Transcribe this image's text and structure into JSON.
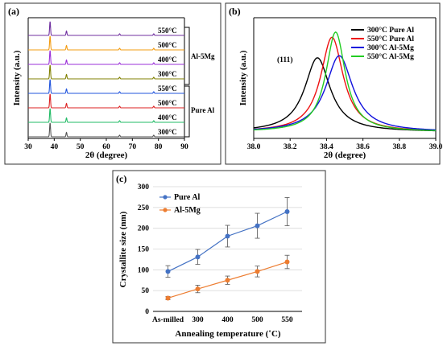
{
  "chart_data": [
    {
      "panel": "(a)",
      "type": "line",
      "xlabel": "2θ (degree)",
      "ylabel": "Intensity (a.u.)",
      "xlim": [
        30,
        90
      ],
      "xticks": [
        "30",
        "40",
        "50",
        "60",
        "70",
        "80",
        "90"
      ],
      "peaks_2theta": [
        38.4,
        44.7,
        65.1,
        78.2
      ],
      "peak_relative_heights": [
        1.0,
        0.32,
        0.12,
        0.12
      ],
      "series": [
        {
          "name": "550°C",
          "group": "Al-5Mg",
          "color": "#7030a0"
        },
        {
          "name": "500°C",
          "group": "Al-5Mg",
          "color": "#f39c12"
        },
        {
          "name": "400°C",
          "group": "Al-5Mg",
          "color": "#9b30d9"
        },
        {
          "name": "300°C",
          "group": "Al-5Mg",
          "color": "#808000"
        },
        {
          "name": "550°C",
          "group": "Pure Al",
          "color": "#2255dd"
        },
        {
          "name": "500°C",
          "group": "Pure Al",
          "color": "#dd2222"
        },
        {
          "name": "400°C",
          "group": "Pure Al",
          "color": "#22bb66"
        },
        {
          "name": "300°C",
          "group": "Pure Al",
          "color": "#555555"
        }
      ],
      "groups": [
        "Al-5Mg",
        "Pure Al"
      ]
    },
    {
      "panel": "(b)",
      "type": "line",
      "xlabel": "2θ (degree)",
      "ylabel": "Intensity (a.u.)",
      "xlim": [
        38.0,
        39.0
      ],
      "xticks": [
        "38.0",
        "38.2",
        "38.4",
        "38.6",
        "38.8",
        "39.0"
      ],
      "annotation": "(111)",
      "series": [
        {
          "name": "300°C Pure Al",
          "color": "#000000",
          "center": 38.35,
          "height": 0.72,
          "width": 0.085
        },
        {
          "name": "550°C Pure Al",
          "color": "#ee1111",
          "center": 38.43,
          "height": 0.92,
          "width": 0.075
        },
        {
          "name": "300°C Al-5Mg",
          "color": "#1111dd",
          "center": 38.47,
          "height": 0.74,
          "width": 0.09
        },
        {
          "name": "550°C Al-5Mg",
          "color": "#22cc22",
          "center": 38.45,
          "height": 0.97,
          "width": 0.065
        }
      ]
    },
    {
      "panel": "(c)",
      "type": "line",
      "xlabel": "Annealing temperature (˚C)",
      "ylabel": "Crystallite size (nm)",
      "ylim": [
        0,
        300
      ],
      "yticks": [
        "0",
        "50",
        "100",
        "150",
        "200",
        "250",
        "300"
      ],
      "categories": [
        "As-milled",
        "300",
        "400",
        "500",
        "550"
      ],
      "grid": "horizontal",
      "legend": "top-left",
      "series": [
        {
          "name": "Pure Al",
          "color": "#4472c4",
          "values": [
            96,
            131,
            181,
            206,
            240
          ],
          "errors": [
            14,
            18,
            26,
            30,
            34
          ]
        },
        {
          "name": "Al-5Mg",
          "color": "#ed7d31",
          "values": [
            32,
            54,
            75,
            96,
            119
          ],
          "errors": [
            4,
            9,
            10,
            13,
            16
          ]
        }
      ]
    }
  ]
}
